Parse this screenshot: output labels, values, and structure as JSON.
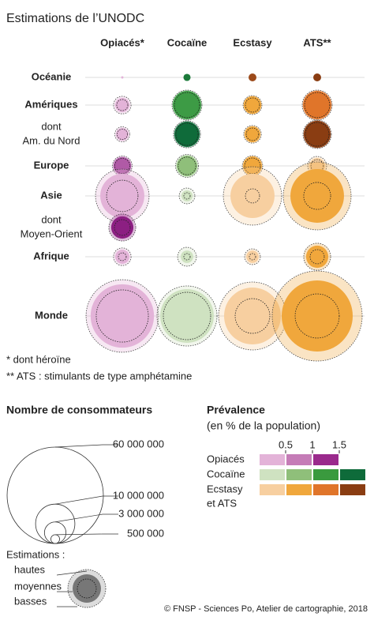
{
  "chart_data": {
    "type": "bubble",
    "title": "Estimations de l’UNODC",
    "categories": [
      "Océanie",
      "Amériques",
      [
        "dont",
        "Am. du Nord"
      ],
      "Europe",
      "Asie",
      [
        "dont",
        "Moyen-Orient"
      ],
      "Afrique",
      "Monde"
    ],
    "series": [
      {
        "name": "Opiacés*",
        "colors": [
          "#e3b3d8",
          "#e3b3d8",
          "#e3b3d8",
          "#b05aa6",
          "#e3b3d8",
          "#8c1f82",
          "#e3b3d8",
          "#e3b3d8"
        ],
        "values": [
          36000,
          1300000,
          1000000,
          2000000,
          12600000,
          3200000,
          1300000,
          26000000
        ],
        "high": [
          null,
          2000000,
          1450000,
          2500000,
          18600000,
          4700000,
          2000000,
          34000000
        ],
        "low": [
          null,
          800000,
          700000,
          1450000,
          6400000,
          1600000,
          400000,
          17600000
        ]
      },
      {
        "name": "Cocaïne",
        "colors": [
          "#1c7a3a",
          "#3d9b45",
          "#0f6b3a",
          "#8fbf7a",
          "#cfe2c1",
          null,
          "#cfe2c1",
          "#cfe2c1"
        ],
        "values": [
          330000,
          5200000,
          4100000,
          2700000,
          800000,
          null,
          1000000,
          18600000
        ],
        "high": [
          null,
          5800000,
          4700000,
          3400000,
          1600000,
          null,
          2300000,
          23300000
        ],
        "low": [
          null,
          4100000,
          3200000,
          2000000,
          260000,
          null,
          260000,
          14500000
        ]
      },
      {
        "name": "Ecstasy",
        "colors": [
          "#9c4a1a",
          "#f0a73c",
          "#f0a73c",
          "#f0a73c",
          "#f7cfa0",
          null,
          "#f7cfa0",
          "#f7cfa0"
        ],
        "values": [
          400000,
          2000000,
          1600000,
          2300000,
          12600000,
          null,
          1000000,
          20900000
        ],
        "high": [
          null,
          2300000,
          2000000,
          2700000,
          22000000,
          null,
          1600000,
          29800000
        ],
        "low": [
          null,
          1300000,
          1000000,
          1600000,
          1300000,
          null,
          260000,
          7800000
        ]
      },
      {
        "name": "ATS**",
        "colors": [
          "#8a3d12",
          "#e0752a",
          "#8a3d12",
          "#f7cfa0",
          "#f0a73c",
          null,
          "#f0a73c",
          "#f0a73c"
        ],
        "values": [
          400000,
          5200000,
          4700000,
          1600000,
          18600000,
          null,
          3200000,
          32700000
        ],
        "high": [
          null,
          5800000,
          5200000,
          2300000,
          29800000,
          null,
          4700000,
          52400000
        ],
        "low": [
          null,
          4100000,
          3600000,
          1000000,
          4700000,
          null,
          1300000,
          12600000
        ]
      }
    ],
    "footnotes": [
      "* dont héroïne",
      "** ATS : stimulants de type amphétamine"
    ],
    "size_legend": {
      "title": "Nombre de consommateurs",
      "ticks": [
        {
          "value": 60000000,
          "label": "60 000 000"
        },
        {
          "value": 10000000,
          "label": "10 000 000"
        },
        {
          "value": 3000000,
          "label": "3 000 000"
        },
        {
          "value": 500000,
          "label": "500 000"
        }
      ]
    },
    "estimation_legend": {
      "title": "Estimations :",
      "items": [
        "hautes",
        "moyennes",
        "basses"
      ]
    },
    "prevalence_legend": {
      "title": "Prévalence",
      "subtitle": "(en % de la population)",
      "ticks": [
        0.5,
        1,
        1.5
      ],
      "rows": [
        {
          "label": [
            "Opiacés"
          ],
          "colors": [
            "#e3b3d8",
            "#c57cb7",
            "#9a2a8c",
            null
          ]
        },
        {
          "label": [
            "Cocaïne"
          ],
          "colors": [
            "#cfe2c1",
            "#8fbf7a",
            "#3a9a3e",
            "#0e6b3a"
          ]
        },
        {
          "label": [
            "Ecstasy",
            "et ATS"
          ],
          "colors": [
            "#f7cfa0",
            "#f0a73c",
            "#e0752a",
            "#8a3d12"
          ]
        }
      ]
    },
    "credit": "© FNSP - Sciences Po, Atelier de cartographie, 2018"
  }
}
